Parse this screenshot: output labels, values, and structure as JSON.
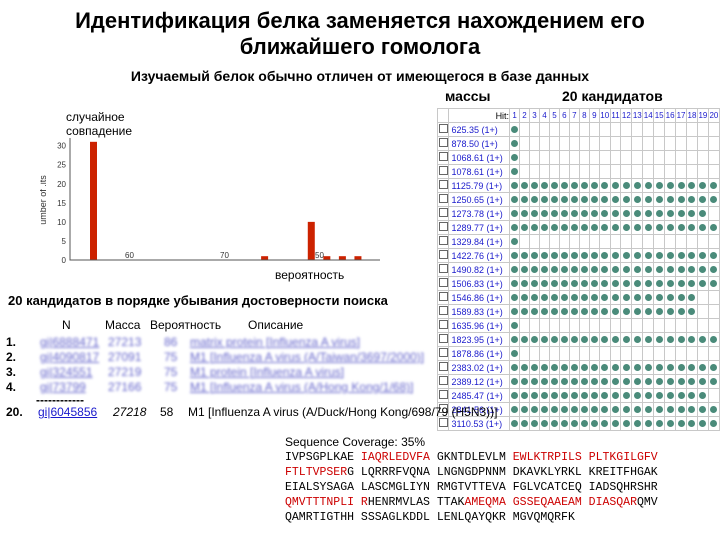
{
  "slide": {
    "title_line1": "Идентификация белка заменяется нахождением его",
    "title_line2": "ближайшего гомолога",
    "subtitle": "Изучаемый белок обычно отличен от имеющегося в базе данных",
    "label_masses": "массы",
    "label_candidates": "20 кандидатов",
    "label_random": "случайное",
    "label_random2": "совпадение",
    "label_probability": "вероятность",
    "list_heading": "20 кандидатов в порядке убывания достоверности поиска"
  },
  "chart_data": {
    "type": "bar",
    "ylabel": "umber of .its",
    "yticks": [
      "0",
      "5",
      "10",
      "15",
      "20",
      "25",
      "30"
    ],
    "xticks": [
      "60",
      "70",
      "50"
    ],
    "x": [
      1,
      2,
      3,
      4,
      5,
      6,
      7,
      8,
      9,
      10,
      11,
      12,
      13,
      14,
      15,
      16,
      17,
      18
    ],
    "values": [
      31,
      0,
      0,
      0,
      0,
      0,
      0,
      0,
      0,
      0,
      0,
      1,
      0,
      0,
      10,
      1,
      1,
      1
    ],
    "ylim": [
      0,
      32
    ]
  },
  "hits_table": {
    "header_hit": "Hit:",
    "columns": [
      "1",
      "2",
      "3",
      "4",
      "5",
      "6",
      "7",
      "8",
      "9",
      "10",
      "11",
      "12",
      "13",
      "14",
      "15",
      "16",
      "17",
      "18",
      "19",
      "20"
    ],
    "masses": [
      "625.35 (1+)",
      "878.50 (1+)",
      "1068.61 (1+)",
      "1078.61 (1+)",
      "1125.79 (1+)",
      "1250.65 (1+)",
      "1273.78 (1+)",
      "1289.77 (1+)",
      "1329.84 (1+)",
      "1422.76 (1+)",
      "1490.82 (1+)",
      "1506.83 (1+)",
      "1546.86 (1+)",
      "1589.83 (1+)",
      "1635.96 (1+)",
      "1823.95 (1+)",
      "1878.86 (1+)",
      "2383.02 (1+)",
      "2389.12 (1+)",
      "2485.47 (1+)",
      "2841.56 (1+)",
      "3110.53 (1+)"
    ]
  },
  "list": {
    "head_n": "N",
    "head_mass": "Масса",
    "head_prob": "Вероятность",
    "head_desc": "Описание",
    "items": [
      {
        "num": "1.",
        "acc": "gi|6888471",
        "mass": "27213",
        "prob": "86",
        "desc": "matrix protein [Influenza A virus]"
      },
      {
        "num": "2.",
        "acc": "gi|4090817",
        "mass": "27091",
        "prob": "75",
        "desc": "M1 [Influenza A virus (A/Taiwan/3697/2000)]"
      },
      {
        "num": "3.",
        "acc": "gi|324551",
        "mass": "27219",
        "prob": "75",
        "desc": "M1 protein [Influenza A virus]"
      },
      {
        "num": "4.",
        "acc": "gi|73799",
        "mass": "27166",
        "prob": "75",
        "desc": "M1 [Influenza A virus (A/Hong Kong/1/68)]"
      }
    ],
    "dashes": "------------",
    "last": {
      "num": "20.",
      "acc": "gi|6045856",
      "mass": "27218",
      "prob": "58",
      "desc": "M1 [Influenza A virus (A/Duck/Hong Kong/698/79 (H5N3))]"
    }
  },
  "coverage": {
    "title": "Sequence Coverage: 35%",
    "lines": [
      [
        [
          "IVPSGPLKAE ",
          0
        ],
        [
          "IAQRLEDVFA ",
          1
        ],
        [
          "GKNTDLEVLM ",
          0
        ],
        [
          "EWLKTRPILS ",
          1
        ],
        [
          "PLTKGILGFV",
          1
        ]
      ],
      [
        [
          "FTLTVPSER",
          1
        ],
        [
          "G LQRRRFVQNA LNGNGDPNNM DKAVKLYRKL KREITFHGAK",
          0
        ]
      ],
      [
        [
          "EIALSYSAGA LASCMGLIYN RMGTVTTEVA FGLVCATCEQ IADSQHRSHR",
          0
        ]
      ],
      [
        [
          "QMVTTTNPLI R",
          1
        ],
        [
          "HENRMVLAS TTAK",
          0
        ],
        [
          "AMEQMA ",
          1
        ],
        [
          "GSSEQAAEAM DIASQAR",
          1
        ],
        [
          "QMV",
          0
        ]
      ],
      [
        [
          "QAMRTIGTHH SSSAGLKDDL LENLQAYQKR MGVQMQRFK",
          0
        ]
      ]
    ]
  },
  "colors": {
    "bar": "#cc2200",
    "dot": "#4a8b7a",
    "link": "#1a1acc",
    "coverage_red": "#cc0000"
  }
}
